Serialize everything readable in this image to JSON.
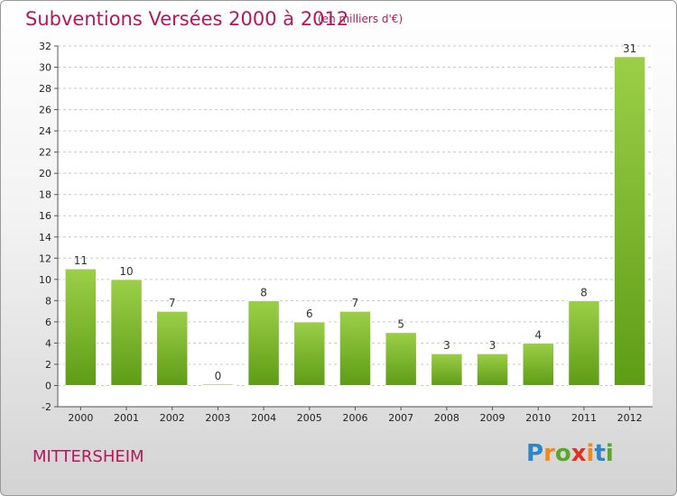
{
  "chart_data": {
    "type": "bar",
    "title": "Subventions Versées 2000 à 2012",
    "subtitle": "(en milliers d'€)",
    "categories": [
      "2000",
      "2001",
      "2002",
      "2003",
      "2004",
      "2005",
      "2006",
      "2007",
      "2008",
      "2009",
      "2010",
      "2011",
      "2012"
    ],
    "values": [
      11,
      10,
      7,
      0,
      8,
      6,
      7,
      5,
      3,
      3,
      4,
      8,
      31
    ],
    "ylim": [
      -2,
      32
    ],
    "yticks": [
      -2,
      0,
      2,
      4,
      6,
      8,
      10,
      12,
      14,
      16,
      18,
      20,
      22,
      24,
      26,
      28,
      30,
      32
    ],
    "grid": "horizontal-dashed",
    "bar_color_top": "#9ccf48",
    "bar_color_bottom": "#5e9c16"
  },
  "commune": "MITTERSHEIM",
  "logo": {
    "letters": [
      "P",
      "r",
      "o",
      "x",
      "i",
      "t",
      "i"
    ],
    "colors": [
      "#2e86c9",
      "#f08a1c",
      "#5aa829",
      "#e03222",
      "#f08a1c",
      "#2e86c9",
      "#5aa829"
    ]
  }
}
